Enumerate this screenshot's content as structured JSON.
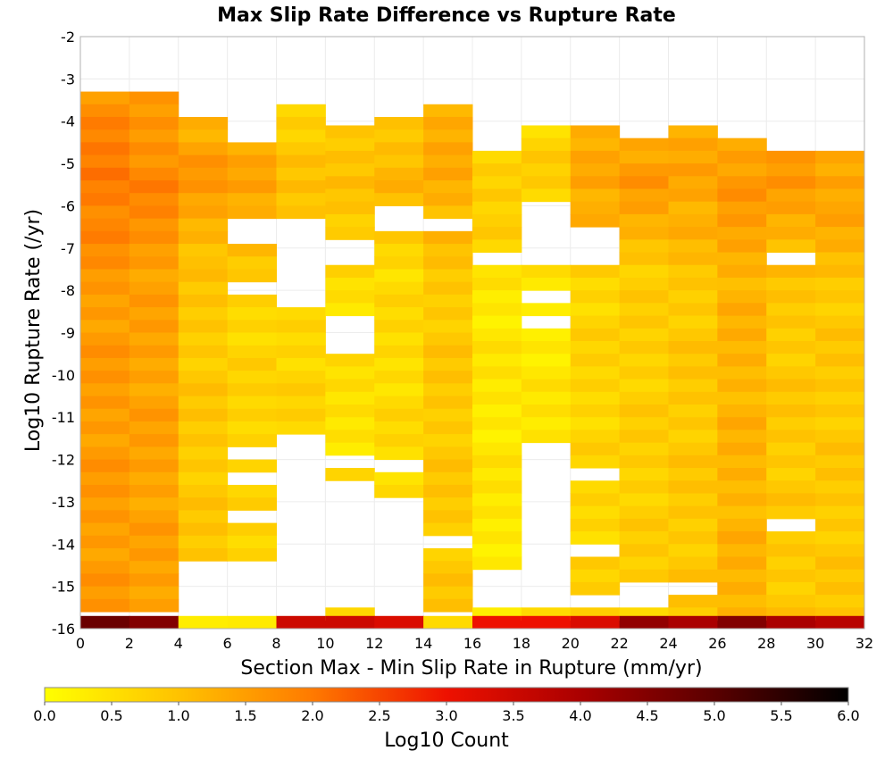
{
  "chart_data": {
    "type": "heatmap",
    "title": "Max Slip Rate Difference vs Rupture Rate",
    "xlabel": "Section Max - Min Slip Rate in Rupture (mm/yr)",
    "ylabel": "Log10 Rupture Rate (/yr)",
    "xlim": [
      0,
      32
    ],
    "ylim": [
      -16,
      -2
    ],
    "x_ticks": [
      "0",
      "2",
      "4",
      "6",
      "8",
      "10",
      "12",
      "14",
      "16",
      "18",
      "20",
      "22",
      "24",
      "26",
      "28",
      "30",
      "32"
    ],
    "y_ticks": [
      "-2",
      "-3",
      "-4",
      "-5",
      "-6",
      "-7",
      "-8",
      "-9",
      "-10",
      "-11",
      "-12",
      "-13",
      "-14",
      "-15",
      "-16"
    ],
    "x_bin_width": 2,
    "y_bin_height": 0.3,
    "grid": true,
    "colorbar": {
      "label": "Log10 Count",
      "range": [
        0,
        6
      ],
      "ticks": [
        "0.0",
        "0.5",
        "1.0",
        "1.5",
        "2.0",
        "2.5",
        "3.0",
        "3.5",
        "4.0",
        "4.5",
        "5.0",
        "5.5",
        "6.0"
      ],
      "stops": [
        {
          "v": 0.0,
          "color": "#ffff00"
        },
        {
          "v": 1.0,
          "color": "#ffc200"
        },
        {
          "v": 2.0,
          "color": "#ff7a00"
        },
        {
          "v": 3.0,
          "color": "#ee1100"
        },
        {
          "v": 4.0,
          "color": "#aa0000"
        },
        {
          "v": 5.0,
          "color": "#5a0000"
        },
        {
          "v": 6.0,
          "color": "#000000"
        }
      ]
    },
    "columns": [
      {
        "x": 0,
        "y_top": -3.3,
        "gaps": [],
        "base": 1.55,
        "peak": 2.05,
        "peak_at": -5.4,
        "last_row_value": 4.8
      },
      {
        "x": 2,
        "y_top": -3.3,
        "gaps": [],
        "base": 1.45,
        "peak": 1.85,
        "peak_at": -5.5,
        "last_row_value": 4.5
      },
      {
        "x": 4,
        "y_top": -3.9,
        "gaps": [
          [
            -14.5,
            -15.6
          ]
        ],
        "base": 0.9,
        "peak": 1.6,
        "peak_at": -5.3,
        "last_row_value": 0.3
      },
      {
        "x": 6,
        "y_top": -4.5,
        "gaps": [
          [
            -6.3,
            -6.8
          ],
          [
            -7.9,
            -8.1
          ],
          [
            -11.8,
            -12.1
          ],
          [
            -12.4,
            -12.6
          ],
          [
            -13.2,
            -13.5
          ],
          [
            -14.3,
            -15.6
          ]
        ],
        "base": 0.7,
        "peak": 1.5,
        "peak_at": -5.4,
        "last_row_value": 0.35
      },
      {
        "x": 8,
        "y_top": -3.6,
        "gaps": [
          [
            -6.2,
            -8.4
          ],
          [
            -11.3,
            -15.6
          ]
        ],
        "base": 0.7,
        "peak": 1.0,
        "peak_at": -5.6,
        "last_row_value": 3.5
      },
      {
        "x": 10,
        "y_top": -4.1,
        "gaps": [
          [
            -6.8,
            -7.5
          ],
          [
            -8.7,
            -9.5
          ],
          [
            -11.8,
            -12.1
          ],
          [
            -12.6,
            -15.6
          ]
        ],
        "base": 0.5,
        "peak": 1.1,
        "peak_at": -5.6,
        "last_row_value": 3.5
      },
      {
        "x": 12,
        "y_top": -3.9,
        "gaps": [
          [
            -5.9,
            -6.7
          ],
          [
            -12.1,
            -12.4
          ],
          [
            -13.0,
            -15.6
          ]
        ],
        "base": 0.6,
        "peak": 1.2,
        "peak_at": -5.2,
        "last_row_value": 3.3
      },
      {
        "x": 14,
        "y_top": -3.6,
        "gaps": [
          [
            -6.2,
            -6.5
          ],
          [
            -13.9,
            -14.2
          ]
        ],
        "base": 0.9,
        "peak": 1.4,
        "peak_at": -5.1,
        "last_row_value": 0.6
      },
      {
        "x": 16,
        "y_top": -4.7,
        "gaps": [
          [
            -7.0,
            -7.3
          ],
          [
            -14.6,
            -15.6
          ]
        ],
        "base": 0.4,
        "peak": 0.9,
        "peak_at": -5.8,
        "last_row_value": 3.0
      },
      {
        "x": 18,
        "y_top": -4.1,
        "gaps": [
          [
            -5.9,
            -7.3
          ],
          [
            -7.9,
            -8.4
          ],
          [
            -8.7,
            -9.0
          ],
          [
            -11.5,
            -15.6
          ]
        ],
        "base": 0.4,
        "peak": 0.8,
        "peak_at": -5.1,
        "last_row_value": 3.0
      },
      {
        "x": 20,
        "y_top": -4.1,
        "gaps": [
          [
            -6.5,
            -7.3
          ],
          [
            -12.1,
            -12.4
          ],
          [
            -13.9,
            -14.2
          ],
          [
            -15.3,
            -15.6
          ]
        ],
        "base": 0.7,
        "peak": 1.5,
        "peak_at": -5.3,
        "last_row_value": 3.3
      },
      {
        "x": 22,
        "y_top": -4.4,
        "gaps": [
          [
            -15.0,
            -15.6
          ]
        ],
        "base": 0.8,
        "peak": 1.6,
        "peak_at": -5.3,
        "last_row_value": 4.3
      },
      {
        "x": 24,
        "y_top": -4.1,
        "gaps": [
          [
            -15.0,
            -15.3
          ]
        ],
        "base": 0.9,
        "peak": 1.5,
        "peak_at": -5.3,
        "last_row_value": 4.0
      },
      {
        "x": 26,
        "y_top": -4.4,
        "gaps": [],
        "base": 1.2,
        "peak": 1.6,
        "peak_at": -5.5,
        "last_row_value": 4.5
      },
      {
        "x": 28,
        "y_top": -4.7,
        "gaps": [
          [
            -7.0,
            -7.3
          ],
          [
            -13.5,
            -13.8
          ]
        ],
        "base": 0.9,
        "peak": 1.6,
        "peak_at": -5.4,
        "last_row_value": 4.0
      },
      {
        "x": 30,
        "y_top": -4.7,
        "gaps": [],
        "base": 0.9,
        "peak": 1.5,
        "peak_at": -5.6,
        "last_row_value": 3.8
      }
    ]
  }
}
